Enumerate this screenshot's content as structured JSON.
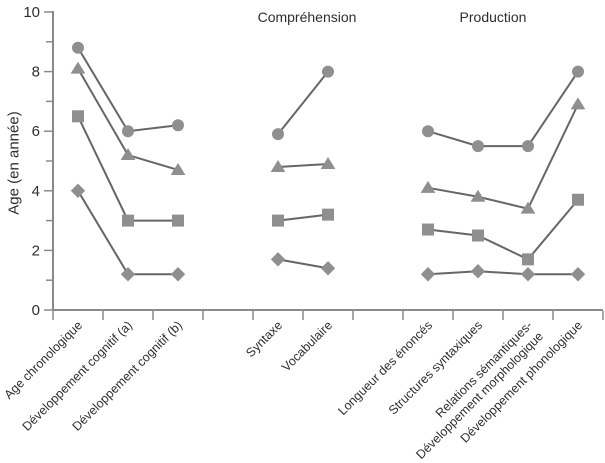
{
  "chart_data": {
    "type": "line",
    "title": "",
    "xlabel": "",
    "ylabel": "Age (en année)",
    "ylim": [
      0,
      10
    ],
    "yticks": [
      0,
      2,
      4,
      6,
      8,
      10
    ],
    "grid": false,
    "legend": "none",
    "axis_color": "#8a8a8a",
    "line_color": "#666666",
    "marker_color": "#8f8f8f",
    "text_color": "#2e2e2e",
    "groups": [
      {
        "name": "",
        "categories": [
          "Age chronologique",
          "Développement cognitif (a)",
          "Développement cognitif (b)"
        ]
      },
      {
        "name": "Compréhension",
        "categories": [
          "Syntaxe",
          "Vocabulaire"
        ]
      },
      {
        "name": "Production",
        "categories": [
          "Longueur des énoncés",
          "Structures syntaxiques",
          [
            "Relations sémantiques-",
            "Développement morphologique"
          ],
          "Développement phonologique"
        ]
      }
    ],
    "series": [
      {
        "marker": "circle",
        "values": [
          [
            8.8,
            6.0,
            6.2
          ],
          [
            5.9,
            8.0
          ],
          [
            6.0,
            5.5,
            5.5,
            8.0
          ]
        ]
      },
      {
        "marker": "triangle",
        "values": [
          [
            8.1,
            5.2,
            4.7
          ],
          [
            4.8,
            4.9
          ],
          [
            4.1,
            3.8,
            3.4,
            6.9
          ]
        ]
      },
      {
        "marker": "square",
        "values": [
          [
            6.5,
            3.0,
            3.0
          ],
          [
            3.0,
            3.2
          ],
          [
            2.7,
            2.5,
            1.7,
            3.7
          ]
        ]
      },
      {
        "marker": "diamond",
        "values": [
          [
            4.0,
            1.2,
            1.2
          ],
          [
            1.7,
            1.4
          ],
          [
            1.2,
            1.3,
            1.2,
            1.2
          ]
        ]
      }
    ]
  }
}
